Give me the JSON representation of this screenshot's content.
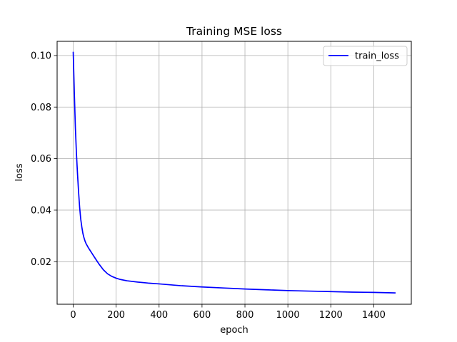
{
  "chart_data": {
    "type": "line",
    "title": "Training MSE loss",
    "xlabel": "epoch",
    "ylabel": "loss",
    "xlim": [
      -75,
      1575
    ],
    "ylim": [
      0.0035,
      0.1055
    ],
    "x_ticks": [
      0,
      200,
      400,
      600,
      800,
      1000,
      1200,
      1400
    ],
    "y_ticks": [
      0.02,
      0.04,
      0.06,
      0.08,
      0.1
    ],
    "y_tick_labels": [
      "0.02",
      "0.04",
      "0.06",
      "0.08",
      "0.10"
    ],
    "grid": true,
    "legend_position": "top-right",
    "series": [
      {
        "name": "train_loss",
        "color": "#0000ff",
        "x": [
          0,
          5,
          10,
          15,
          20,
          25,
          30,
          35,
          40,
          45,
          50,
          55,
          60,
          70,
          80,
          90,
          100,
          120,
          140,
          160,
          180,
          200,
          220,
          250,
          300,
          350,
          400,
          500,
          600,
          700,
          800,
          900,
          1000,
          1100,
          1200,
          1300,
          1400,
          1499
        ],
        "y": [
          0.1012,
          0.086,
          0.072,
          0.062,
          0.054,
          0.047,
          0.041,
          0.0365,
          0.0335,
          0.031,
          0.0293,
          0.028,
          0.027,
          0.0255,
          0.0242,
          0.0229,
          0.0216,
          0.0191,
          0.0169,
          0.0153,
          0.0143,
          0.0136,
          0.0131,
          0.0126,
          0.0121,
          0.0117,
          0.0114,
          0.0107,
          0.0102,
          0.0098,
          0.0094,
          0.0091,
          0.0088,
          0.0086,
          0.0084,
          0.0082,
          0.0081,
          0.0079
        ]
      }
    ]
  }
}
